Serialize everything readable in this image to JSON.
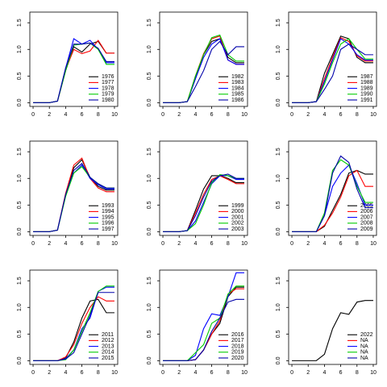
{
  "chart_data": [
    {
      "type": "line",
      "x": [
        0,
        1,
        2,
        3,
        4,
        5,
        6,
        7,
        8,
        9,
        10
      ],
      "xlim": [
        -0.4,
        10.4
      ],
      "xticks": [
        0,
        2,
        4,
        6,
        8,
        10
      ],
      "ylim": [
        -0.07,
        1.7
      ],
      "yticks": [
        {
          "value": 0,
          "label": "0.0"
        },
        {
          "value": 0.5,
          "label": "0.5"
        },
        {
          "value": 1,
          "label": "1.0"
        },
        {
          "value": 1.5,
          "label": "1.5"
        }
      ],
      "series": [
        {
          "name": "1976",
          "color": "#000000",
          "values": [
            0,
            0,
            0,
            0.03,
            0.6,
            1.05,
            0.95,
            1.1,
            1.15,
            0.93,
            0.93
          ]
        },
        {
          "name": "1977",
          "color": "#ff0000",
          "values": [
            0,
            0,
            0,
            0.03,
            0.62,
            1.0,
            0.92,
            0.97,
            1.17,
            0.93,
            0.93
          ]
        },
        {
          "name": "1978",
          "color": "#0000ff",
          "values": [
            0,
            0,
            0,
            0.03,
            0.65,
            1.2,
            1.1,
            1.17,
            1.0,
            0.75,
            0.75
          ]
        },
        {
          "name": "1979",
          "color": "#00cc00",
          "values": [
            0,
            0,
            0,
            0.03,
            0.6,
            1.08,
            1.1,
            1.12,
            1.0,
            0.72,
            0.72
          ]
        },
        {
          "name": "1980",
          "color": "#0000aa",
          "values": [
            0,
            0,
            0,
            0.03,
            0.65,
            1.1,
            1.1,
            1.12,
            1.02,
            0.77,
            0.77
          ]
        }
      ]
    },
    {
      "type": "line",
      "x": [
        0,
        1,
        2,
        3,
        4,
        5,
        6,
        7,
        8,
        9,
        10
      ],
      "xlim": [
        -0.4,
        10.4
      ],
      "xticks": [
        0,
        2,
        4,
        6,
        8,
        10
      ],
      "ylim": [
        -0.07,
        1.7
      ],
      "yticks": [
        {
          "value": 0,
          "label": "0.0"
        },
        {
          "value": 0.5,
          "label": "0.5"
        },
        {
          "value": 1,
          "label": "1.0"
        },
        {
          "value": 1.5,
          "label": "1.5"
        }
      ],
      "series": [
        {
          "name": "1982",
          "color": "#000000",
          "values": [
            0,
            0,
            0,
            0.02,
            0.45,
            0.9,
            1.15,
            1.2,
            0.85,
            0.75,
            0.75
          ]
        },
        {
          "name": "1983",
          "color": "#ff0000",
          "values": [
            0,
            0,
            0,
            0.02,
            0.5,
            0.92,
            1.2,
            1.25,
            0.8,
            0.72,
            0.72
          ]
        },
        {
          "name": "1984",
          "color": "#0000ff",
          "values": [
            0,
            0,
            0,
            0.02,
            0.45,
            0.85,
            1.1,
            1.2,
            0.8,
            0.72,
            0.72
          ]
        },
        {
          "name": "1985",
          "color": "#00cc00",
          "values": [
            0,
            0,
            0,
            0.02,
            0.5,
            0.9,
            1.22,
            1.27,
            0.9,
            0.78,
            0.78
          ]
        },
        {
          "name": "1986",
          "color": "#0000aa",
          "values": [
            0,
            0,
            0,
            0.02,
            0.3,
            0.6,
            1.0,
            1.15,
            0.9,
            1.05,
            1.05
          ]
        }
      ]
    },
    {
      "type": "line",
      "x": [
        0,
        1,
        2,
        3,
        4,
        5,
        6,
        7,
        8,
        9,
        10
      ],
      "xlim": [
        -0.4,
        10.4
      ],
      "xticks": [
        0,
        2,
        4,
        6,
        8,
        10
      ],
      "ylim": [
        -0.07,
        1.7
      ],
      "yticks": [
        {
          "value": 0,
          "label": "0.0"
        },
        {
          "value": 0.5,
          "label": "0.5"
        },
        {
          "value": 1,
          "label": "1.0"
        },
        {
          "value": 1.5,
          "label": "1.5"
        }
      ],
      "series": [
        {
          "name": "1987",
          "color": "#000000",
          "values": [
            0,
            0,
            0,
            0.02,
            0.55,
            0.9,
            1.25,
            1.2,
            0.85,
            0.75,
            0.75
          ]
        },
        {
          "name": "1988",
          "color": "#ff0000",
          "values": [
            0,
            0,
            0,
            0.02,
            0.45,
            0.85,
            1.22,
            1.15,
            0.88,
            0.78,
            0.78
          ]
        },
        {
          "name": "1989",
          "color": "#0000ff",
          "values": [
            0,
            0,
            0,
            0.02,
            0.4,
            0.8,
            1.2,
            1.1,
            0.9,
            0.8,
            0.8
          ]
        },
        {
          "name": "1990",
          "color": "#00cc00",
          "values": [
            0,
            0,
            0,
            0.02,
            0.35,
            0.75,
            1.1,
            1.2,
            1.0,
            0.82,
            0.82
          ]
        },
        {
          "name": "1991",
          "color": "#0000aa",
          "values": [
            0,
            0,
            0,
            0.02,
            0.25,
            0.5,
            1.0,
            1.1,
            1.0,
            0.9,
            0.9
          ]
        }
      ]
    },
    {
      "type": "line",
      "x": [
        0,
        1,
        2,
        3,
        4,
        5,
        6,
        7,
        8,
        9,
        10
      ],
      "xlim": [
        -0.4,
        10.4
      ],
      "xticks": [
        0,
        2,
        4,
        6,
        8,
        10
      ],
      "ylim": [
        -0.07,
        1.7
      ],
      "yticks": [
        {
          "value": 0,
          "label": "0.0"
        },
        {
          "value": 0.5,
          "label": "0.5"
        },
        {
          "value": 1,
          "label": "1.0"
        },
        {
          "value": 1.5,
          "label": "1.5"
        }
      ],
      "series": [
        {
          "name": "1993",
          "color": "#000000",
          "values": [
            0,
            0,
            0,
            0.03,
            0.7,
            1.2,
            1.35,
            1.02,
            0.85,
            0.78,
            0.78
          ]
        },
        {
          "name": "1994",
          "color": "#ff0000",
          "values": [
            0,
            0,
            0,
            0.03,
            0.72,
            1.25,
            1.38,
            1.0,
            0.82,
            0.75,
            0.75
          ]
        },
        {
          "name": "1995",
          "color": "#0000ff",
          "values": [
            0,
            0,
            0,
            0.03,
            0.68,
            1.1,
            1.25,
            1.0,
            0.88,
            0.8,
            0.8
          ]
        },
        {
          "name": "1996",
          "color": "#00cc00",
          "values": [
            0,
            0,
            0,
            0.03,
            0.66,
            1.1,
            1.22,
            1.02,
            0.9,
            0.82,
            0.82
          ]
        },
        {
          "name": "1997",
          "color": "#0000aa",
          "values": [
            0,
            0,
            0,
            0.03,
            0.7,
            1.15,
            1.28,
            1.02,
            0.9,
            0.82,
            0.82
          ]
        }
      ]
    },
    {
      "type": "line",
      "x": [
        0,
        1,
        2,
        3,
        4,
        5,
        6,
        7,
        8,
        9,
        10
      ],
      "xlim": [
        -0.4,
        10.4
      ],
      "xticks": [
        0,
        2,
        4,
        6,
        8,
        10
      ],
      "ylim": [
        -0.07,
        1.7
      ],
      "yticks": [
        {
          "value": 0,
          "label": "0.0"
        },
        {
          "value": 0.5,
          "label": "0.5"
        },
        {
          "value": 1,
          "label": "1.0"
        },
        {
          "value": 1.5,
          "label": "1.5"
        }
      ],
      "series": [
        {
          "name": "1999",
          "color": "#000000",
          "values": [
            0,
            0,
            0,
            0.02,
            0.4,
            0.8,
            1.05,
            1.05,
            1.0,
            0.92,
            0.92
          ]
        },
        {
          "name": "2000",
          "color": "#ff0000",
          "values": [
            0,
            0,
            0,
            0.02,
            0.35,
            0.7,
            0.98,
            1.05,
            0.98,
            0.9,
            0.9
          ]
        },
        {
          "name": "2001",
          "color": "#0000ff",
          "values": [
            0,
            0,
            0,
            0.02,
            0.2,
            0.55,
            0.9,
            1.05,
            1.05,
            0.98,
            0.98
          ]
        },
        {
          "name": "2002",
          "color": "#00cc00",
          "values": [
            0,
            0,
            0,
            0.02,
            0.15,
            0.5,
            0.92,
            1.07,
            1.05,
            1.0,
            1.0
          ]
        },
        {
          "name": "2003",
          "color": "#0000aa",
          "values": [
            0,
            0,
            0,
            0.02,
            0.3,
            0.65,
            0.95,
            1.05,
            1.08,
            1.0,
            1.0
          ]
        }
      ]
    },
    {
      "type": "line",
      "x": [
        0,
        1,
        2,
        3,
        4,
        5,
        6,
        7,
        8,
        9,
        10
      ],
      "xlim": [
        -0.4,
        10.4
      ],
      "xticks": [
        0,
        2,
        4,
        6,
        8,
        10
      ],
      "ylim": [
        -0.07,
        1.7
      ],
      "yticks": [
        {
          "value": 0,
          "label": "0.0"
        },
        {
          "value": 0.5,
          "label": "0.5"
        },
        {
          "value": 1,
          "label": "1.0"
        },
        {
          "value": 1.5,
          "label": "1.5"
        }
      ],
      "series": [
        {
          "name": "2005",
          "color": "#000000",
          "values": [
            0,
            0,
            0,
            0,
            0.1,
            0.4,
            0.7,
            1.1,
            1.15,
            1.08,
            1.08
          ]
        },
        {
          "name": "2006",
          "color": "#ff0000",
          "values": [
            0,
            0,
            0,
            0,
            0.12,
            0.35,
            0.65,
            1.05,
            1.15,
            0.85,
            0.85
          ]
        },
        {
          "name": "2007",
          "color": "#0000ff",
          "values": [
            0,
            0,
            0,
            0,
            0.3,
            0.85,
            1.1,
            1.25,
            0.9,
            0.5,
            0.5
          ]
        },
        {
          "name": "2008",
          "color": "#00cc00",
          "values": [
            0,
            0,
            0,
            0,
            0.35,
            1.15,
            1.35,
            1.25,
            0.85,
            0.55,
            0.55
          ]
        },
        {
          "name": "2009",
          "color": "#0000aa",
          "values": [
            0,
            0,
            0,
            0,
            0.3,
            1.1,
            1.42,
            1.3,
            0.8,
            0.45,
            0.45
          ]
        }
      ]
    },
    {
      "type": "line",
      "x": [
        0,
        1,
        2,
        3,
        4,
        5,
        6,
        7,
        8,
        9,
        10
      ],
      "xlim": [
        -0.4,
        10.4
      ],
      "xticks": [
        0,
        2,
        4,
        6,
        8,
        10
      ],
      "ylim": [
        -0.07,
        1.7
      ],
      "yticks": [
        {
          "value": 0,
          "label": "0.0"
        },
        {
          "value": 0.5,
          "label": "0.5"
        },
        {
          "value": 1,
          "label": "1.0"
        },
        {
          "value": 1.5,
          "label": "1.5"
        }
      ],
      "series": [
        {
          "name": "2011",
          "color": "#000000",
          "values": [
            0,
            0,
            0,
            0,
            0.05,
            0.35,
            0.8,
            1.12,
            1.15,
            0.9,
            0.9
          ]
        },
        {
          "name": "2012",
          "color": "#ff0000",
          "values": [
            0,
            0,
            0,
            0,
            0.07,
            0.3,
            0.7,
            1.0,
            1.2,
            1.12,
            1.12
          ]
        },
        {
          "name": "2013",
          "color": "#0000ff",
          "values": [
            0,
            0,
            0,
            0,
            0.04,
            0.2,
            0.6,
            0.8,
            1.3,
            1.38,
            1.38
          ]
        },
        {
          "name": "2014",
          "color": "#00cc00",
          "values": [
            0,
            0,
            0,
            0,
            0.02,
            0.2,
            0.55,
            0.9,
            1.3,
            1.4,
            1.4
          ]
        },
        {
          "name": "2015",
          "color": "#0000aa",
          "values": [
            0,
            0,
            0,
            0,
            0.03,
            0.15,
            0.5,
            0.85,
            1.28,
            1.28,
            1.28
          ]
        }
      ]
    },
    {
      "type": "line",
      "x": [
        0,
        1,
        2,
        3,
        4,
        5,
        6,
        7,
        8,
        9,
        10
      ],
      "xlim": [
        -0.4,
        10.4
      ],
      "xticks": [
        0,
        2,
        4,
        6,
        8,
        10
      ],
      "ylim": [
        -0.07,
        1.7
      ],
      "yticks": [
        {
          "value": 0,
          "label": "0.0"
        },
        {
          "value": 0.5,
          "label": "0.5"
        },
        {
          "value": 1,
          "label": "1.0"
        },
        {
          "value": 1.5,
          "label": "1.5"
        }
      ],
      "series": [
        {
          "name": "2016",
          "color": "#000000",
          "values": [
            0,
            0,
            0,
            0,
            0.02,
            0.2,
            0.5,
            0.7,
            1.2,
            1.38,
            1.38
          ]
        },
        {
          "name": "2017",
          "color": "#ff0000",
          "values": [
            0,
            0,
            0,
            0,
            0.02,
            0.2,
            0.5,
            0.75,
            1.25,
            1.35,
            1.35
          ]
        },
        {
          "name": "2018",
          "color": "#0000ff",
          "values": [
            0,
            0,
            0,
            0,
            0.1,
            0.6,
            0.88,
            0.85,
            1.2,
            1.65,
            1.65
          ]
        },
        {
          "name": "2019",
          "color": "#00cc00",
          "values": [
            0,
            0,
            0,
            0,
            0.15,
            0.3,
            0.7,
            0.8,
            1.25,
            1.4,
            1.4
          ]
        },
        {
          "name": "2020",
          "color": "#0000aa",
          "values": [
            0,
            0,
            0,
            0,
            0.02,
            0.2,
            0.55,
            0.8,
            1.1,
            1.15,
            1.15
          ]
        }
      ]
    },
    {
      "type": "line",
      "x": [
        0,
        1,
        2,
        3,
        4,
        5,
        6,
        7,
        8,
        9,
        10
      ],
      "xlim": [
        -0.4,
        10.4
      ],
      "xticks": [
        0,
        2,
        4,
        6,
        8,
        10
      ],
      "ylim": [
        -0.07,
        1.7
      ],
      "yticks": [
        {
          "value": 0,
          "label": "0.0"
        },
        {
          "value": 0.5,
          "label": "0.5"
        },
        {
          "value": 1,
          "label": "1.0"
        },
        {
          "value": 1.5,
          "label": "1.5"
        }
      ],
      "series": [
        {
          "name": "2022",
          "color": "#000000",
          "values": [
            0,
            0,
            0,
            0,
            0.12,
            0.6,
            0.9,
            0.87,
            1.1,
            1.13,
            1.13
          ]
        },
        {
          "name": "NA",
          "color": "#ff0000",
          "values": [
            null,
            null,
            null,
            null,
            null,
            null,
            null,
            null,
            null,
            null,
            null
          ]
        },
        {
          "name": "NA",
          "color": "#0000ff",
          "values": [
            null,
            null,
            null,
            null,
            null,
            null,
            null,
            null,
            null,
            null,
            null
          ]
        },
        {
          "name": "NA",
          "color": "#00cc00",
          "values": [
            null,
            null,
            null,
            null,
            null,
            null,
            null,
            null,
            null,
            null,
            null
          ]
        },
        {
          "name": "NA",
          "color": "#0000aa",
          "values": [
            null,
            null,
            null,
            null,
            null,
            null,
            null,
            null,
            null,
            null,
            null
          ]
        }
      ]
    }
  ]
}
